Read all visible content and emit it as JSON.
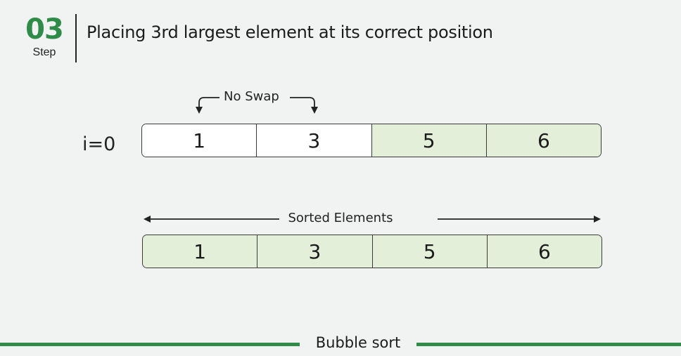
{
  "step": {
    "number": "03",
    "label": "Step"
  },
  "title": "Placing 3rd largest element at its correct position",
  "iteration": {
    "label": "i=0"
  },
  "comparison": {
    "label": "No Swap"
  },
  "current_array": [
    {
      "value": "1",
      "state": "unsorted"
    },
    {
      "value": "3",
      "state": "unsorted"
    },
    {
      "value": "5",
      "state": "sorted"
    },
    {
      "value": "6",
      "state": "sorted"
    }
  ],
  "sorted_section": {
    "label": "Sorted Elements"
  },
  "sorted_array": [
    {
      "value": "1"
    },
    {
      "value": "3"
    },
    {
      "value": "5"
    },
    {
      "value": "6"
    }
  ],
  "footer": {
    "label": "Bubble sort"
  },
  "colors": {
    "accent": "#2e8b48",
    "sorted_fill": "#e3efd8",
    "unsorted_fill": "#ffffff",
    "background": "#f1f2f2"
  }
}
